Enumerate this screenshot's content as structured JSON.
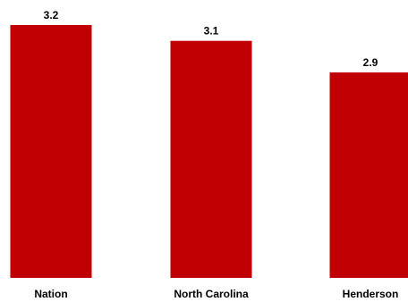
{
  "chart_data": {
    "type": "bar",
    "title": "",
    "xlabel": "",
    "ylabel": "",
    "categories": [
      "Nation",
      "North Carolina",
      "Henderson"
    ],
    "series": [
      {
        "values": [
          3.2,
          3.1,
          2.9
        ],
        "color": "#c00000"
      }
    ],
    "data_labels": [
      "3.2",
      "3.1",
      "2.9"
    ],
    "ylim": [
      1.6,
      3.2
    ],
    "grid": false,
    "legend": "none"
  }
}
